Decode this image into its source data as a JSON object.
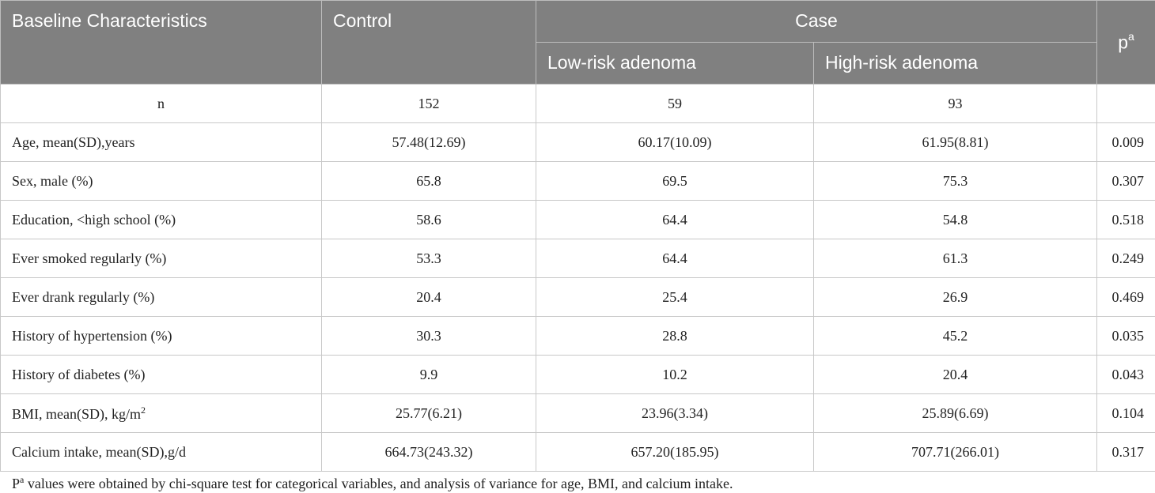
{
  "header": {
    "baseline": "Baseline Characteristics",
    "control": "Control",
    "case": "Case",
    "low_risk": "Low-risk adenoma",
    "high_risk": "High-risk adenoma",
    "p": "p",
    "p_sup": "a"
  },
  "rows": [
    {
      "label": "n",
      "control": "152",
      "low": "59",
      "high": "93",
      "p": ""
    },
    {
      "label": "Age, mean(SD),years",
      "control": "57.48(12.69)",
      "low": "60.17(10.09)",
      "high": "61.95(8.81)",
      "p": "0.009"
    },
    {
      "label": "Sex, male (%)",
      "control": "65.8",
      "low": "69.5",
      "high": "75.3",
      "p": "0.307"
    },
    {
      "label": "Education, <high school (%)",
      "control": "58.6",
      "low": "64.4",
      "high": "54.8",
      "p": "0.518"
    },
    {
      "label": "Ever smoked regularly (%)",
      "control": "53.3",
      "low": "64.4",
      "high": "61.3",
      "p": "0.249"
    },
    {
      "label": "Ever drank regularly (%)",
      "control": "20.4",
      "low": "25.4",
      "high": "26.9",
      "p": "0.469"
    },
    {
      "label": "History of hypertension (%)",
      "control": "30.3",
      "low": "28.8",
      "high": "45.2",
      "p": "0.035"
    },
    {
      "label": "History of diabetes (%)",
      "control": "9.9",
      "low": "10.2",
      "high": "20.4",
      "p": "0.043"
    },
    {
      "label": "BMI, mean(SD), kg/m",
      "label_sup": "2",
      "control": "25.77(6.21)",
      "low": "23.96(3.34)",
      "high": "25.89(6.69)",
      "p": "0.104"
    },
    {
      "label": "Calcium intake, mean(SD),g/d",
      "control": "664.73(243.32)",
      "low": "657.20(185.95)",
      "high": "707.71(266.01)",
      "p": "0.317"
    }
  ],
  "footnote": {
    "lead": "P",
    "sup": "a",
    "text": " values were obtained by chi-square test for categorical variables, and analysis of variance for age, BMI, and calcium intake."
  }
}
